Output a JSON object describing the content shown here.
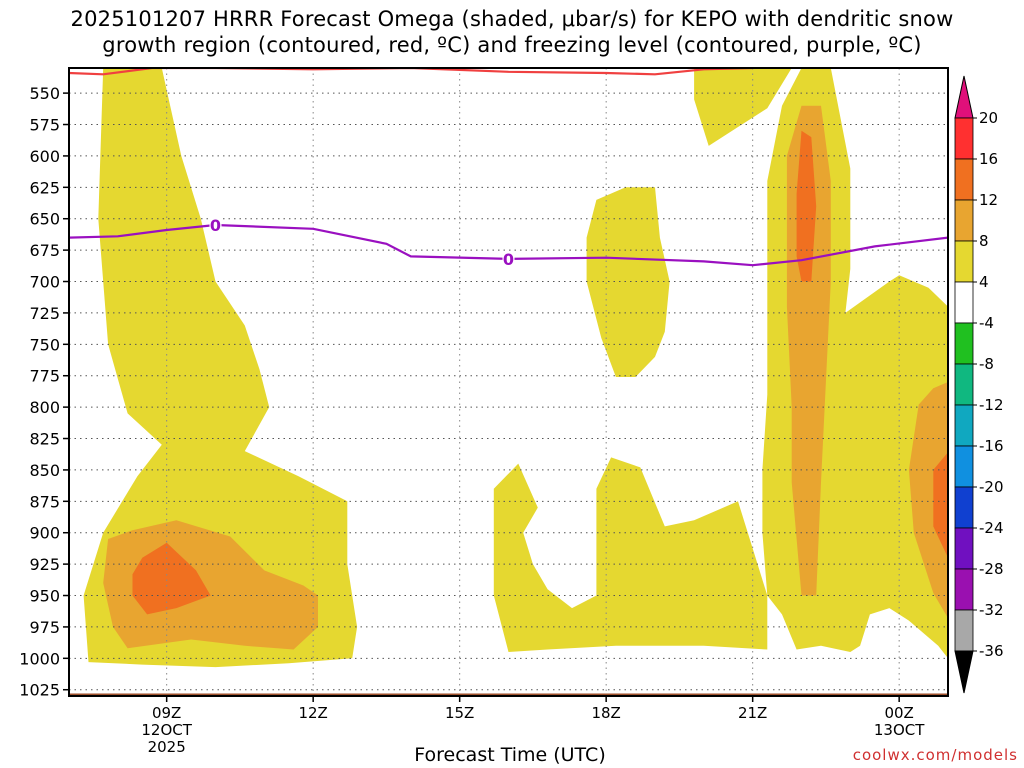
{
  "title_line1": "2025101207 HRRR Forecast Omega (shaded, μbar/s) for KEPO with dendritic snow",
  "title_line2": "growth region (contoured, red, ºC) and freezing level (contoured, purple, ºC)",
  "xlabel": "Forecast Time (UTC)",
  "credit": "coolwx.com/models",
  "chart_data": {
    "type": "contour",
    "title": "2025101207 HRRR Forecast Omega (shaded, μbar/s) for KEPO with dendritic snow growth region (contoured, red, ºC) and freezing level (contoured, purple, ºC)",
    "xlabel": "Forecast Time (UTC)",
    "ylabel": "",
    "x_range_hours": [
      7,
      25
    ],
    "y_range_hPa": [
      1030,
      530
    ],
    "y_axis": "pressure (hPa), decreasing upward",
    "y_ticks": [
      550,
      575,
      600,
      625,
      650,
      675,
      700,
      725,
      750,
      775,
      800,
      825,
      850,
      875,
      900,
      925,
      950,
      975,
      1000,
      1025
    ],
    "x_ticks": [
      {
        "hour": 9,
        "lines": [
          "09Z",
          "12OCT",
          "2025"
        ]
      },
      {
        "hour": 12,
        "lines": [
          "12Z"
        ]
      },
      {
        "hour": 15,
        "lines": [
          "15Z"
        ]
      },
      {
        "hour": 18,
        "lines": [
          "18Z"
        ]
      },
      {
        "hour": 21,
        "lines": [
          "21Z"
        ]
      },
      {
        "hour": 24,
        "lines": [
          "00Z",
          "13OCT"
        ]
      }
    ],
    "grid": true,
    "colorbar": {
      "labels": [
        "20",
        "16",
        "12",
        "8",
        "4",
        "-4",
        "-8",
        "-12",
        "-16",
        "-20",
        "-24",
        "-28",
        "-32",
        "-36"
      ],
      "colors": [
        "#ff3030",
        "#f07020",
        "#e8a530",
        "#e5d830",
        "#ffffff",
        "#20c020",
        "#10b880",
        "#10a8c0",
        "#1090e0",
        "#1040d0",
        "#7010c0",
        "#9a10b0",
        "#a8a8a8"
      ],
      "top_arrow_color": "#e0107a",
      "bottom_arrow_color": "#000000"
    },
    "omega_fill_colors": {
      "4_8": "#e5d830",
      "8_12": "#e8a530",
      "12_16": "#f07020"
    },
    "omega_regions": [
      {
        "level": "4-8",
        "points": [
          [
            7.7,
            530
          ],
          [
            8.9,
            530
          ],
          [
            9.3,
            600
          ],
          [
            9.7,
            650
          ],
          [
            10,
            700
          ],
          [
            10.6,
            735
          ],
          [
            10.9,
            770
          ],
          [
            11.1,
            800
          ],
          [
            10.6,
            835
          ],
          [
            11.7,
            855
          ],
          [
            12.7,
            875
          ],
          [
            12.7,
            925
          ],
          [
            12.9,
            975
          ],
          [
            12.8,
            1000
          ],
          [
            11.5,
            1004
          ],
          [
            10,
            1007
          ],
          [
            8.5,
            1005
          ],
          [
            7.4,
            1003
          ],
          [
            7.3,
            950
          ],
          [
            7.7,
            900
          ],
          [
            8.4,
            855
          ],
          [
            8.9,
            830
          ],
          [
            8.2,
            805
          ],
          [
            7.8,
            750
          ],
          [
            7.6,
            650
          ]
        ]
      },
      {
        "level": "8-12",
        "points": [
          [
            7.8,
            905
          ],
          [
            8.3,
            898
          ],
          [
            9.2,
            890
          ],
          [
            10.3,
            903
          ],
          [
            11,
            930
          ],
          [
            11.8,
            942
          ],
          [
            12.1,
            950
          ],
          [
            12.1,
            975
          ],
          [
            11.6,
            993
          ],
          [
            10.6,
            990
          ],
          [
            9.5,
            985
          ],
          [
            8.2,
            992
          ],
          [
            7.9,
            975
          ],
          [
            7.7,
            940
          ]
        ]
      },
      {
        "level": "12-16",
        "points": [
          [
            8.3,
            933
          ],
          [
            8.5,
            920
          ],
          [
            9.0,
            908
          ],
          [
            9.6,
            930
          ],
          [
            9.9,
            950
          ],
          [
            9.2,
            960
          ],
          [
            8.6,
            965
          ],
          [
            8.3,
            950
          ]
        ]
      },
      {
        "level": "4-8",
        "points": [
          [
            15.7,
            865
          ],
          [
            16.2,
            845
          ],
          [
            16.6,
            880
          ],
          [
            16.3,
            900
          ],
          [
            16.5,
            925
          ],
          [
            16.8,
            945
          ],
          [
            17.3,
            960
          ],
          [
            17.8,
            950
          ],
          [
            17.8,
            900
          ],
          [
            17.8,
            865
          ],
          [
            18.1,
            840
          ],
          [
            18.7,
            848
          ],
          [
            19.2,
            895
          ],
          [
            19.8,
            890
          ],
          [
            20.7,
            875
          ],
          [
            21.3,
            950
          ],
          [
            21.3,
            993
          ],
          [
            20.0,
            990
          ],
          [
            18.2,
            990
          ],
          [
            16.8,
            993
          ],
          [
            16.0,
            995
          ],
          [
            15.7,
            950
          ]
        ]
      },
      {
        "level": "4-8",
        "points": [
          [
            17.6,
            665
          ],
          [
            17.8,
            635
          ],
          [
            18.4,
            625
          ],
          [
            19.0,
            625
          ],
          [
            19.1,
            665
          ],
          [
            19.3,
            700
          ],
          [
            19.2,
            740
          ],
          [
            19,
            760
          ],
          [
            18.6,
            776
          ],
          [
            18.2,
            776
          ],
          [
            17.9,
            745
          ],
          [
            17.6,
            700
          ]
        ]
      },
      {
        "level": "4-8",
        "points": [
          [
            19.8,
            530
          ],
          [
            21.8,
            530
          ],
          [
            21.3,
            562
          ],
          [
            20.7,
            577
          ],
          [
            20.1,
            592
          ],
          [
            19.8,
            555
          ]
        ]
      },
      {
        "level": "4-8",
        "points": [
          [
            21.3,
            725
          ],
          [
            21.3,
            620
          ],
          [
            21.6,
            560
          ],
          [
            22.0,
            530
          ],
          [
            22.6,
            530
          ],
          [
            23,
            610
          ],
          [
            23,
            690
          ],
          [
            22.9,
            725
          ],
          [
            23.8,
            700
          ],
          [
            24,
            695
          ],
          [
            24.6,
            705
          ],
          [
            25,
            720
          ],
          [
            25,
            1000
          ],
          [
            24.8,
            990
          ],
          [
            24.2,
            970
          ],
          [
            23.8,
            960
          ],
          [
            23.4,
            965
          ],
          [
            23.2,
            990
          ],
          [
            23.0,
            995
          ],
          [
            22.4,
            990
          ],
          [
            21.9,
            993
          ],
          [
            21.6,
            965
          ],
          [
            21.3,
            950
          ],
          [
            21.2,
            900
          ],
          [
            21.2,
            850
          ],
          [
            21.3,
            790
          ]
        ]
      },
      {
        "level": "8-12",
        "points": [
          [
            21.7,
            720
          ],
          [
            21.7,
            600
          ],
          [
            22.0,
            560
          ],
          [
            22.4,
            560
          ],
          [
            22.6,
            620
          ],
          [
            22.6,
            700
          ],
          [
            22.5,
            780
          ],
          [
            22.4,
            860
          ],
          [
            22.3,
            950
          ],
          [
            22.0,
            950
          ],
          [
            21.8,
            860
          ],
          [
            21.8,
            800
          ]
        ]
      },
      {
        "level": "12-16",
        "points": [
          [
            21.9,
            630
          ],
          [
            22.0,
            580
          ],
          [
            22.2,
            585
          ],
          [
            22.3,
            640
          ],
          [
            22.2,
            700
          ],
          [
            22.0,
            700
          ],
          [
            21.9,
            680
          ]
        ]
      },
      {
        "level": "8-12",
        "points": [
          [
            24.4,
            798
          ],
          [
            24.7,
            785
          ],
          [
            25,
            780
          ],
          [
            25,
            968
          ],
          [
            24.7,
            948
          ],
          [
            24.3,
            900
          ],
          [
            24.2,
            850
          ]
        ]
      },
      {
        "level": "12-16",
        "points": [
          [
            24.7,
            850
          ],
          [
            25,
            836
          ],
          [
            25,
            920
          ],
          [
            24.7,
            895
          ],
          [
            24.7,
            870
          ]
        ]
      }
    ],
    "contours": [
      {
        "name": "dendritic snow growth region",
        "color": "#f04040",
        "points": [
          [
            7,
            534
          ],
          [
            7.7,
            535
          ],
          [
            8.7,
            530
          ],
          [
            10,
            530
          ],
          [
            12,
            531
          ],
          [
            14,
            530
          ],
          [
            16,
            533
          ],
          [
            18,
            534
          ],
          [
            19.0,
            535
          ],
          [
            20,
            531
          ],
          [
            21,
            530
          ]
        ]
      },
      {
        "name": "freezing level",
        "color": "#9a10c0",
        "label": "0",
        "points": [
          [
            7,
            665
          ],
          [
            8,
            664
          ],
          [
            9,
            659
          ],
          [
            10,
            655
          ],
          [
            12,
            658
          ],
          [
            13.5,
            670
          ],
          [
            14,
            680
          ],
          [
            16,
            682
          ],
          [
            18,
            681
          ],
          [
            20,
            684
          ],
          [
            21,
            687
          ],
          [
            22,
            683
          ],
          [
            23.5,
            672
          ],
          [
            25,
            665
          ]
        ]
      }
    ],
    "freezing_level_labels": [
      {
        "x": 10.0,
        "y": 655,
        "text": "0"
      },
      {
        "x": 16.0,
        "y": 682,
        "text": "0"
      }
    ],
    "ground_level_hPa": 1028
  }
}
